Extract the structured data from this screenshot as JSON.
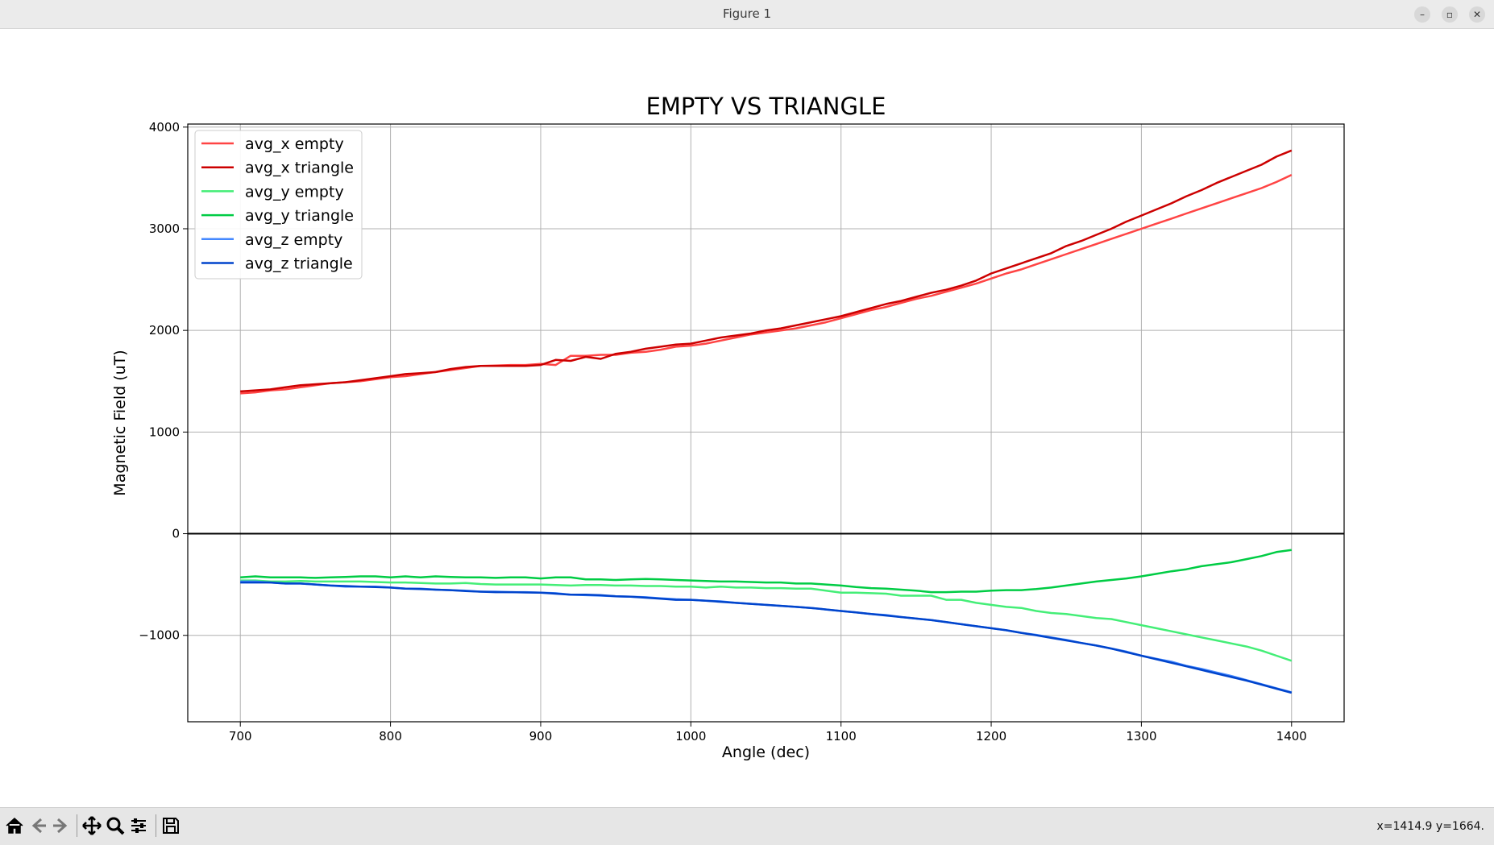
{
  "window": {
    "title": "Figure 1"
  },
  "window_controls": {
    "minimize": "–",
    "maximize": "▫",
    "close": "✕"
  },
  "toolbar": {
    "coords": "x=1414.9 y=1664."
  },
  "chart_data": {
    "type": "line",
    "title": "EMPTY VS TRIANGLE",
    "xlabel": "Angle (dec)",
    "ylabel": "Magnetic Field (uT)",
    "xlim": [
      665,
      1435
    ],
    "ylim": [
      -1850,
      4030
    ],
    "xticks": [
      700,
      800,
      900,
      1000,
      1100,
      1200,
      1300,
      1400
    ],
    "yticks": [
      -1000,
      0,
      1000,
      2000,
      3000,
      4000
    ],
    "ytick_labels": [
      "−1000",
      "0",
      "1000",
      "2000",
      "3000",
      "4000"
    ],
    "grid": true,
    "hline": 0,
    "legend_position": "upper left",
    "x": [
      700,
      710,
      720,
      730,
      740,
      750,
      760,
      770,
      780,
      790,
      800,
      810,
      820,
      830,
      840,
      850,
      860,
      870,
      880,
      890,
      900,
      910,
      920,
      930,
      940,
      950,
      960,
      970,
      980,
      990,
      1000,
      1010,
      1020,
      1030,
      1040,
      1050,
      1060,
      1070,
      1080,
      1090,
      1100,
      1110,
      1120,
      1130,
      1140,
      1150,
      1160,
      1170,
      1180,
      1190,
      1200,
      1210,
      1220,
      1230,
      1240,
      1250,
      1260,
      1270,
      1280,
      1290,
      1300,
      1310,
      1320,
      1330,
      1340,
      1350,
      1360,
      1370,
      1380,
      1390,
      1400
    ],
    "series": [
      {
        "name": "avg_x empty",
        "color": "#ff4444",
        "values": [
          1380,
          1390,
          1410,
          1420,
          1440,
          1460,
          1480,
          1490,
          1500,
          1520,
          1540,
          1550,
          1570,
          1590,
          1610,
          1630,
          1650,
          1655,
          1660,
          1660,
          1670,
          1660,
          1750,
          1750,
          1760,
          1760,
          1780,
          1790,
          1810,
          1840,
          1850,
          1870,
          1900,
          1930,
          1960,
          1980,
          2000,
          2020,
          2050,
          2080,
          2120,
          2160,
          2200,
          2230,
          2270,
          2310,
          2340,
          2380,
          2420,
          2460,
          2510,
          2560,
          2600,
          2650,
          2700,
          2750,
          2800,
          2850,
          2900,
          2950,
          3000,
          3050,
          3100,
          3150,
          3200,
          3250,
          3300,
          3350,
          3400,
          3460,
          3530
        ]
      },
      {
        "name": "avg_x triangle",
        "color": "#cc0000",
        "values": [
          1400,
          1410,
          1420,
          1440,
          1460,
          1470,
          1480,
          1490,
          1510,
          1530,
          1550,
          1570,
          1580,
          1590,
          1620,
          1640,
          1650,
          1650,
          1650,
          1650,
          1660,
          1710,
          1700,
          1740,
          1720,
          1770,
          1790,
          1820,
          1840,
          1860,
          1870,
          1900,
          1930,
          1950,
          1970,
          2000,
          2020,
          2050,
          2080,
          2110,
          2140,
          2180,
          2220,
          2260,
          2290,
          2330,
          2370,
          2400,
          2440,
          2490,
          2560,
          2610,
          2660,
          2710,
          2760,
          2830,
          2880,
          2940,
          3000,
          3070,
          3130,
          3190,
          3250,
          3320,
          3380,
          3450,
          3510,
          3570,
          3630,
          3710,
          3770
        ]
      },
      {
        "name": "avg_y empty",
        "color": "#44ee77",
        "values": [
          -460,
          -460,
          -470,
          -470,
          -465,
          -470,
          -470,
          -470,
          -470,
          -475,
          -480,
          -480,
          -485,
          -490,
          -490,
          -485,
          -495,
          -500,
          -500,
          -500,
          -500,
          -505,
          -510,
          -505,
          -505,
          -510,
          -510,
          -515,
          -515,
          -520,
          -520,
          -530,
          -520,
          -530,
          -530,
          -535,
          -535,
          -540,
          -540,
          -560,
          -580,
          -580,
          -585,
          -590,
          -610,
          -610,
          -610,
          -650,
          -650,
          -680,
          -700,
          -720,
          -730,
          -760,
          -780,
          -790,
          -810,
          -830,
          -840,
          -870,
          -900,
          -930,
          -960,
          -990,
          -1020,
          -1050,
          -1080,
          -1110,
          -1150,
          -1200,
          -1250
        ]
      },
      {
        "name": "avg_y triangle",
        "color": "#00cc44",
        "values": [
          -430,
          -420,
          -430,
          -430,
          -430,
          -435,
          -430,
          -425,
          -420,
          -420,
          -430,
          -420,
          -430,
          -420,
          -425,
          -430,
          -430,
          -435,
          -430,
          -430,
          -440,
          -430,
          -430,
          -450,
          -450,
          -455,
          -450,
          -445,
          -450,
          -455,
          -460,
          -465,
          -470,
          -470,
          -475,
          -480,
          -480,
          -490,
          -490,
          -500,
          -510,
          -525,
          -535,
          -540,
          -550,
          -560,
          -575,
          -575,
          -570,
          -570,
          -560,
          -555,
          -555,
          -545,
          -530,
          -510,
          -490,
          -470,
          -455,
          -440,
          -420,
          -395,
          -370,
          -350,
          -320,
          -300,
          -280,
          -250,
          -220,
          -180,
          -160
        ]
      },
      {
        "name": "avg_z empty",
        "color": "#4488ff",
        "values": [
          -470,
          -470,
          -480,
          -490,
          -490,
          -500,
          -510,
          -520,
          -520,
          -520,
          -530,
          -540,
          -540,
          -550,
          -555,
          -560,
          -570,
          -570,
          -575,
          -575,
          -580,
          -585,
          -600,
          -605,
          -610,
          -615,
          -620,
          -625,
          -635,
          -645,
          -650,
          -660,
          -665,
          -680,
          -690,
          -700,
          -710,
          -720,
          -730,
          -745,
          -760,
          -775,
          -790,
          -800,
          -820,
          -835,
          -850,
          -870,
          -890,
          -910,
          -930,
          -950,
          -975,
          -995,
          -1020,
          -1045,
          -1075,
          -1100,
          -1130,
          -1160,
          -1200,
          -1230,
          -1260,
          -1300,
          -1330,
          -1365,
          -1400,
          -1440,
          -1480,
          -1520,
          -1560
        ]
      },
      {
        "name": "avg_z triangle",
        "color": "#0044cc",
        "values": [
          -480,
          -480,
          -480,
          -490,
          -490,
          -500,
          -510,
          -515,
          -520,
          -525,
          -530,
          -540,
          -545,
          -550,
          -555,
          -565,
          -570,
          -575,
          -575,
          -578,
          -580,
          -590,
          -600,
          -600,
          -605,
          -615,
          -620,
          -630,
          -640,
          -650,
          -650,
          -660,
          -670,
          -680,
          -690,
          -700,
          -710,
          -720,
          -730,
          -745,
          -760,
          -775,
          -790,
          -805,
          -820,
          -835,
          -850,
          -870,
          -890,
          -910,
          -930,
          -950,
          -975,
          -1000,
          -1025,
          -1050,
          -1075,
          -1100,
          -1130,
          -1165,
          -1200,
          -1235,
          -1270,
          -1305,
          -1340,
          -1375,
          -1410,
          -1445,
          -1485,
          -1525,
          -1565
        ]
      }
    ]
  }
}
